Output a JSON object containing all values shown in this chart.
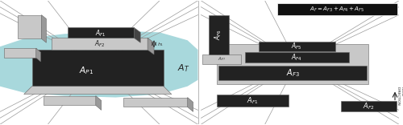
{
  "fig_width": 5.0,
  "fig_height": 1.56,
  "dpi": 100,
  "bg_color": "#ffffff",
  "left": {
    "teal": "#a8d8dc",
    "dark": "#222222",
    "light": "#c8c8c8",
    "mid": "#999999",
    "road": "#aaaaaa",
    "border": "#666666"
  },
  "right": {
    "dark": "#222222",
    "light": "#c8c8c8",
    "mid": "#888888",
    "formula_bg": "#111111",
    "road": "#aaaaaa",
    "border": "#666666"
  }
}
